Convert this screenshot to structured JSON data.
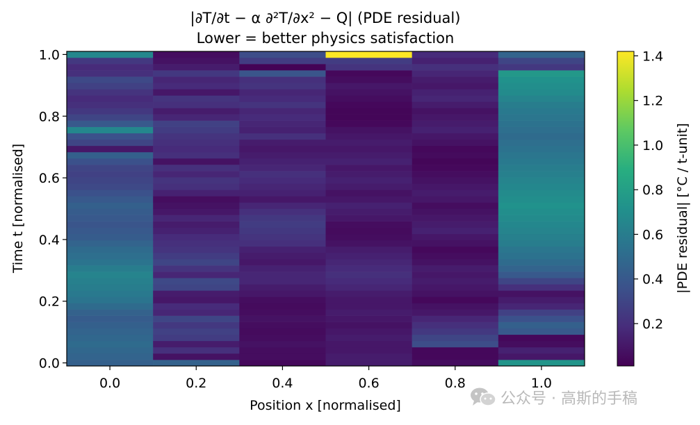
{
  "chart_data": {
    "type": "heatmap",
    "title": "|∂T/∂t − α ∂²T/∂x² − Q|  (PDE residual)",
    "subtitle": "Lower = better physics satisfaction",
    "xlabel": "Position x  [normalised]",
    "ylabel": "Time t  [normalised]",
    "colorbar_label": "|PDE residual|  [°C / t-unit]",
    "colormap": "viridis",
    "x": [
      0.0,
      0.2,
      0.4,
      0.6,
      0.8,
      1.0
    ],
    "x_ticks": [
      "0.0",
      "0.2",
      "0.4",
      "0.6",
      "0.8",
      "1.0"
    ],
    "y_ticks": [
      "0.0",
      "0.2",
      "0.4",
      "0.6",
      "0.8",
      "1.0"
    ],
    "colorbar_ticks": [
      "0.2",
      "0.4",
      "0.6",
      "0.8",
      "1.0",
      "1.2",
      "1.4"
    ],
    "xlim": [
      -0.1,
      1.1
    ],
    "ylim": [
      -0.01,
      1.01
    ],
    "clim": [
      0.01,
      1.42
    ],
    "t_rows": 50,
    "residual_columns": [
      [
        0.44,
        0.46,
        0.48,
        0.5,
        0.48,
        0.46,
        0.44,
        0.42,
        0.45,
        0.5,
        0.55,
        0.58,
        0.6,
        0.62,
        0.64,
        0.6,
        0.55,
        0.52,
        0.5,
        0.46,
        0.42,
        0.4,
        0.38,
        0.4,
        0.42,
        0.44,
        0.4,
        0.36,
        0.32,
        0.3,
        0.28,
        0.3,
        0.36,
        0.44,
        0.1,
        0.3,
        0.36,
        0.66,
        0.4,
        0.3,
        0.24,
        0.2,
        0.18,
        0.22,
        0.28,
        0.32,
        0.2,
        0.18,
        0.24,
        0.66
      ],
      [
        0.45,
        0.08,
        0.2,
        0.12,
        0.26,
        0.28,
        0.24,
        0.3,
        0.16,
        0.18,
        0.1,
        0.12,
        0.3,
        0.32,
        0.16,
        0.22,
        0.3,
        0.26,
        0.22,
        0.2,
        0.18,
        0.14,
        0.12,
        0.16,
        0.1,
        0.08,
        0.06,
        0.14,
        0.2,
        0.22,
        0.16,
        0.2,
        0.08,
        0.2,
        0.18,
        0.2,
        0.22,
        0.26,
        0.28,
        0.16,
        0.12,
        0.2,
        0.22,
        0.1,
        0.18,
        0.16,
        0.24,
        0.12,
        0.08,
        0.06
      ],
      [
        0.04,
        0.06,
        0.06,
        0.08,
        0.06,
        0.05,
        0.06,
        0.08,
        0.06,
        0.05,
        0.06,
        0.1,
        0.12,
        0.16,
        0.16,
        0.14,
        0.1,
        0.12,
        0.14,
        0.2,
        0.22,
        0.24,
        0.26,
        0.24,
        0.2,
        0.16,
        0.1,
        0.14,
        0.16,
        0.18,
        0.2,
        0.16,
        0.14,
        0.12,
        0.1,
        0.12,
        0.2,
        0.14,
        0.16,
        0.18,
        0.16,
        0.22,
        0.18,
        0.16,
        0.22,
        0.2,
        0.38,
        0.02,
        0.26,
        0.34
      ],
      [
        0.12,
        0.12,
        0.1,
        0.1,
        0.12,
        0.1,
        0.08,
        0.1,
        0.12,
        0.1,
        0.1,
        0.12,
        0.16,
        0.18,
        0.2,
        0.18,
        0.16,
        0.14,
        0.12,
        0.08,
        0.06,
        0.05,
        0.06,
        0.1,
        0.12,
        0.14,
        0.1,
        0.08,
        0.12,
        0.14,
        0.12,
        0.1,
        0.14,
        0.12,
        0.1,
        0.12,
        0.1,
        0.08,
        0.04,
        0.03,
        0.03,
        0.04,
        0.06,
        0.08,
        0.1,
        0.06,
        0.04,
        0.22,
        0.26,
        1.42
      ],
      [
        0.06,
        0.04,
        0.04,
        0.34,
        0.3,
        0.24,
        0.2,
        0.16,
        0.1,
        0.08,
        0.04,
        0.08,
        0.1,
        0.12,
        0.1,
        0.12,
        0.08,
        0.06,
        0.04,
        0.08,
        0.1,
        0.14,
        0.12,
        0.1,
        0.08,
        0.06,
        0.1,
        0.12,
        0.1,
        0.08,
        0.06,
        0.04,
        0.03,
        0.05,
        0.04,
        0.08,
        0.1,
        0.14,
        0.12,
        0.1,
        0.08,
        0.12,
        0.16,
        0.14,
        0.1,
        0.12,
        0.16,
        0.2,
        0.14,
        0.18
      ],
      [
        0.74,
        0.1,
        0.14,
        0.06,
        0.04,
        0.4,
        0.44,
        0.36,
        0.28,
        0.16,
        0.12,
        0.08,
        0.2,
        0.3,
        0.4,
        0.46,
        0.5,
        0.54,
        0.56,
        0.6,
        0.62,
        0.64,
        0.66,
        0.68,
        0.7,
        0.72,
        0.7,
        0.68,
        0.66,
        0.64,
        0.62,
        0.6,
        0.58,
        0.56,
        0.54,
        0.52,
        0.5,
        0.52,
        0.54,
        0.56,
        0.58,
        0.6,
        0.64,
        0.68,
        0.7,
        0.72,
        0.76,
        0.24,
        0.3,
        0.46
      ]
    ]
  },
  "watermark": {
    "text": "公众号 · 高斯的手稿",
    "icon": "wechat-icon"
  }
}
